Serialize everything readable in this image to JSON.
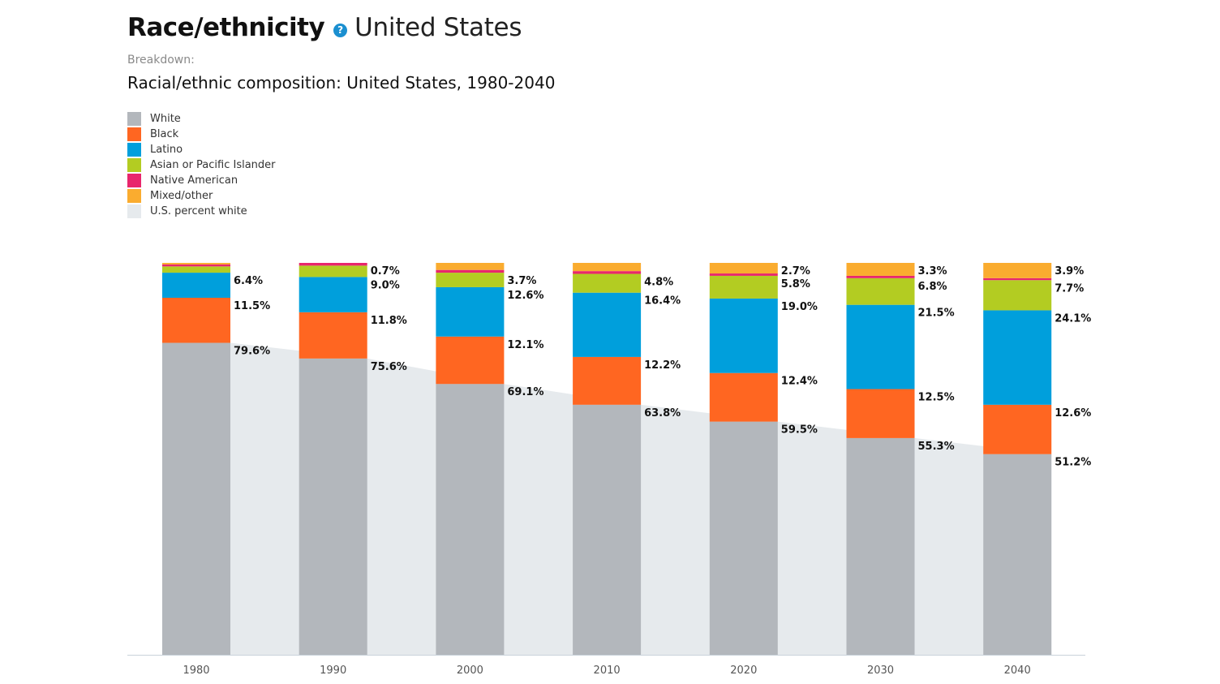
{
  "header": {
    "title": "Race/ethnicity",
    "help_glyph": "?",
    "location": "United States"
  },
  "breakdown_label": "Breakdown:",
  "colors": {
    "White": "#b3b7bc",
    "Black": "#ff6621",
    "Latino": "#009fdc",
    "Asian or Pacific Islander": "#b3cc22",
    "Native American": "#e8266d",
    "Mixed/other": "#faac2f",
    "U.S. percent white": "#e6eaed"
  },
  "chart_data": {
    "type": "bar",
    "stacked": true,
    "title": "Racial/ethnic composition: United States, 1980-2040",
    "categories": [
      "1980",
      "1990",
      "2000",
      "2010",
      "2020",
      "2030",
      "2040"
    ],
    "ylim": [
      0,
      100
    ],
    "legend_position": "top-left",
    "grid": false,
    "series": [
      {
        "name": "White",
        "values": [
          79.6,
          75.6,
          69.1,
          63.8,
          59.5,
          55.3,
          51.2
        ]
      },
      {
        "name": "Black",
        "values": [
          11.5,
          11.8,
          12.1,
          12.2,
          12.4,
          12.5,
          12.6
        ]
      },
      {
        "name": "Latino",
        "values": [
          6.4,
          9.0,
          12.6,
          16.4,
          19.0,
          21.5,
          24.1
        ]
      },
      {
        "name": "Asian or Pacific Islander",
        "values": [
          1.6,
          2.9,
          3.7,
          4.8,
          5.8,
          6.8,
          7.7
        ]
      },
      {
        "name": "Native American",
        "values": [
          0.5,
          0.7,
          0.7,
          0.7,
          0.6,
          0.6,
          0.5
        ]
      },
      {
        "name": "Mixed/other",
        "values": [
          0.4,
          0.0,
          1.8,
          2.1,
          2.7,
          3.3,
          3.9
        ]
      }
    ],
    "area": {
      "name": "U.S. percent white",
      "values": [
        79.6,
        75.6,
        69.1,
        63.8,
        59.5,
        55.3,
        51.2
      ]
    },
    "data_labels": [
      [
        {
          "series": "White",
          "text": "79.6%"
        },
        {
          "series": "Black",
          "text": "11.5%"
        },
        {
          "series": "Latino",
          "text": "6.4%"
        }
      ],
      [
        {
          "series": "White",
          "text": "75.6%"
        },
        {
          "series": "Black",
          "text": "11.8%"
        },
        {
          "series": "Latino",
          "text": "9.0%"
        },
        {
          "series": "Native American",
          "text": "0.7%"
        }
      ],
      [
        {
          "series": "White",
          "text": "69.1%"
        },
        {
          "series": "Black",
          "text": "12.1%"
        },
        {
          "series": "Latino",
          "text": "12.6%"
        },
        {
          "series": "Asian or Pacific Islander",
          "text": "3.7%"
        }
      ],
      [
        {
          "series": "White",
          "text": "63.8%"
        },
        {
          "series": "Black",
          "text": "12.2%"
        },
        {
          "series": "Latino",
          "text": "16.4%"
        },
        {
          "series": "Asian or Pacific Islander",
          "text": "4.8%"
        }
      ],
      [
        {
          "series": "White",
          "text": "59.5%"
        },
        {
          "series": "Black",
          "text": "12.4%"
        },
        {
          "series": "Latino",
          "text": "19.0%"
        },
        {
          "series": "Asian or Pacific Islander",
          "text": "5.8%"
        },
        {
          "series": "Mixed/other",
          "text": "2.7%"
        }
      ],
      [
        {
          "series": "White",
          "text": "55.3%"
        },
        {
          "series": "Black",
          "text": "12.5%"
        },
        {
          "series": "Latino",
          "text": "21.5%"
        },
        {
          "series": "Asian or Pacific Islander",
          "text": "6.8%"
        },
        {
          "series": "Mixed/other",
          "text": "3.3%"
        }
      ],
      [
        {
          "series": "White",
          "text": "51.2%"
        },
        {
          "series": "Black",
          "text": "12.6%"
        },
        {
          "series": "Latino",
          "text": "24.1%"
        },
        {
          "series": "Asian or Pacific Islander",
          "text": "7.7%"
        },
        {
          "series": "Mixed/other",
          "text": "3.9%"
        }
      ]
    ]
  }
}
